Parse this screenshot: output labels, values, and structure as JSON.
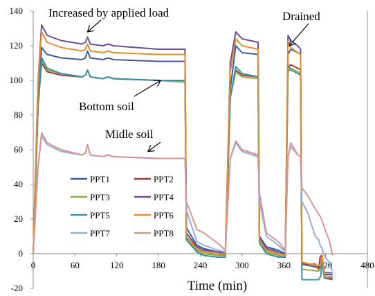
{
  "chart_data": {
    "type": "line",
    "xlabel": "Time (min)",
    "ylabel": "",
    "xlim": [
      0,
      480
    ],
    "ylim": [
      -20,
      140
    ],
    "xticks": [
      0,
      60,
      120,
      180,
      240,
      300,
      360,
      420,
      480
    ],
    "yticks": [
      -20,
      0,
      20,
      40,
      60,
      80,
      100,
      120,
      140
    ],
    "legend_position": "lower-left",
    "annotations": [
      {
        "text": "Increased by applied load",
        "target": [
          78,
          128
        ]
      },
      {
        "text": "Drained",
        "target": [
          368,
          120
        ]
      },
      {
        "text": "Bottom soil",
        "target": [
          183,
          100
        ]
      },
      {
        "text": "Midle soil",
        "target": [
          165,
          59
        ]
      }
    ],
    "series": [
      {
        "name": "PPT1",
        "color": "#3E5C9A",
        "points": [
          [
            0,
            0
          ],
          [
            7,
            85
          ],
          [
            12,
            119
          ],
          [
            20,
            115
          ],
          [
            40,
            113
          ],
          [
            70,
            112
          ],
          [
            75,
            113
          ],
          [
            78,
            117
          ],
          [
            82,
            113
          ],
          [
            100,
            112
          ],
          [
            108,
            113
          ],
          [
            115,
            112
          ],
          [
            180,
            111
          ],
          [
            218,
            111
          ],
          [
            220,
            15
          ],
          [
            235,
            5
          ],
          [
            245,
            3
          ],
          [
            265,
            1
          ],
          [
            276,
            1
          ],
          [
            283,
            95
          ],
          [
            291,
            120
          ],
          [
            300,
            116
          ],
          [
            323,
            115
          ],
          [
            325,
            10
          ],
          [
            335,
            4
          ],
          [
            352,
            2
          ],
          [
            362,
            0
          ],
          [
            366,
            115
          ],
          [
            370,
            118
          ],
          [
            380,
            116
          ],
          [
            384,
            115
          ],
          [
            386,
            -6
          ],
          [
            410,
            -8
          ],
          [
            413,
            -7
          ],
          [
            415,
            -2
          ],
          [
            418,
            -12
          ],
          [
            430,
            -12
          ]
        ]
      },
      {
        "name": "PPT2",
        "color": "#A93A38",
        "points": [
          [
            0,
            0
          ],
          [
            7,
            85
          ],
          [
            12,
            110
          ],
          [
            20,
            105
          ],
          [
            40,
            103
          ],
          [
            70,
            102
          ],
          [
            75,
            103
          ],
          [
            78,
            106
          ],
          [
            82,
            102
          ],
          [
            100,
            101
          ],
          [
            108,
            102
          ],
          [
            115,
            101
          ],
          [
            180,
            100
          ],
          [
            218,
            99
          ],
          [
            220,
            10
          ],
          [
            235,
            3
          ],
          [
            245,
            1
          ],
          [
            265,
            0
          ],
          [
            276,
            -1
          ],
          [
            283,
            90
          ],
          [
            291,
            106
          ],
          [
            300,
            103
          ],
          [
            323,
            102
          ],
          [
            325,
            8
          ],
          [
            335,
            2
          ],
          [
            352,
            0
          ],
          [
            362,
            -1
          ],
          [
            366,
            108
          ],
          [
            370,
            109
          ],
          [
            380,
            107
          ],
          [
            384,
            106
          ],
          [
            386,
            -6
          ],
          [
            405,
            -6
          ],
          [
            410,
            -9
          ],
          [
            412,
            -2
          ],
          [
            414,
            -1
          ],
          [
            418,
            -14
          ],
          [
            430,
            -15
          ]
        ]
      },
      {
        "name": "PPT3",
        "color": "#8BAF45",
        "points": [
          [
            0,
            0
          ],
          [
            7,
            85
          ],
          [
            12,
            112
          ],
          [
            20,
            106
          ],
          [
            40,
            104
          ],
          [
            70,
            102
          ],
          [
            75,
            103
          ],
          [
            78,
            106
          ],
          [
            82,
            102
          ],
          [
            100,
            101
          ],
          [
            108,
            102
          ],
          [
            115,
            101
          ],
          [
            180,
            100
          ],
          [
            218,
            99
          ],
          [
            220,
            9
          ],
          [
            235,
            2
          ],
          [
            245,
            0
          ],
          [
            265,
            -1
          ],
          [
            276,
            -1
          ],
          [
            283,
            90
          ],
          [
            291,
            105
          ],
          [
            300,
            102
          ],
          [
            323,
            101
          ],
          [
            325,
            7
          ],
          [
            335,
            1
          ],
          [
            352,
            -1
          ],
          [
            362,
            -2
          ],
          [
            366,
            105
          ],
          [
            370,
            107
          ],
          [
            380,
            105
          ],
          [
            384,
            104
          ],
          [
            386,
            -9
          ],
          [
            410,
            -10
          ],
          [
            413,
            -8
          ],
          [
            415,
            -3
          ],
          [
            418,
            -14
          ],
          [
            430,
            -14
          ]
        ]
      },
      {
        "name": "PPT4",
        "color": "#6A4F95",
        "points": [
          [
            0,
            0
          ],
          [
            7,
            100
          ],
          [
            12,
            132
          ],
          [
            20,
            126
          ],
          [
            40,
            123
          ],
          [
            70,
            121
          ],
          [
            75,
            122
          ],
          [
            78,
            125
          ],
          [
            82,
            121
          ],
          [
            100,
            120
          ],
          [
            108,
            121
          ],
          [
            115,
            120
          ],
          [
            180,
            118
          ],
          [
            218,
            118
          ],
          [
            220,
            12
          ],
          [
            235,
            4
          ],
          [
            245,
            2
          ],
          [
            265,
            1
          ],
          [
            276,
            0
          ],
          [
            283,
            110
          ],
          [
            291,
            128
          ],
          [
            300,
            124
          ],
          [
            323,
            122
          ],
          [
            325,
            9
          ],
          [
            335,
            3
          ],
          [
            352,
            1
          ],
          [
            362,
            0
          ],
          [
            366,
            126
          ],
          [
            370,
            123
          ],
          [
            380,
            120
          ],
          [
            384,
            118
          ],
          [
            386,
            -5
          ],
          [
            410,
            -7
          ],
          [
            413,
            -5
          ],
          [
            415,
            -1
          ],
          [
            418,
            -11
          ],
          [
            430,
            -11
          ]
        ]
      },
      {
        "name": "PPT5",
        "color": "#3A8FA8",
        "points": [
          [
            0,
            0
          ],
          [
            7,
            85
          ],
          [
            12,
            113
          ],
          [
            20,
            107
          ],
          [
            40,
            104
          ],
          [
            70,
            102
          ],
          [
            75,
            103
          ],
          [
            78,
            106
          ],
          [
            82,
            102
          ],
          [
            100,
            101
          ],
          [
            108,
            102
          ],
          [
            115,
            101
          ],
          [
            180,
            100
          ],
          [
            218,
            100
          ],
          [
            220,
            8
          ],
          [
            235,
            1
          ],
          [
            245,
            -1
          ],
          [
            265,
            -2
          ],
          [
            276,
            -2
          ],
          [
            283,
            90
          ],
          [
            291,
            108
          ],
          [
            300,
            104
          ],
          [
            323,
            102
          ],
          [
            325,
            6
          ],
          [
            335,
            0
          ],
          [
            352,
            -2
          ],
          [
            362,
            -2
          ],
          [
            366,
            109
          ],
          [
            370,
            106
          ],
          [
            380,
            104
          ],
          [
            384,
            103
          ],
          [
            386,
            -15
          ],
          [
            410,
            -15
          ],
          [
            413,
            -13
          ],
          [
            415,
            -4
          ],
          [
            418,
            -14
          ],
          [
            430,
            -14
          ]
        ]
      },
      {
        "name": "PPT6",
        "color": "#E28E2E",
        "points": [
          [
            0,
            0
          ],
          [
            7,
            100
          ],
          [
            12,
            128
          ],
          [
            20,
            122
          ],
          [
            40,
            119
          ],
          [
            70,
            117
          ],
          [
            75,
            118
          ],
          [
            78,
            121
          ],
          [
            82,
            117
          ],
          [
            100,
            116
          ],
          [
            108,
            117
          ],
          [
            115,
            116
          ],
          [
            180,
            115
          ],
          [
            218,
            115
          ],
          [
            220,
            10
          ],
          [
            235,
            3
          ],
          [
            245,
            1
          ],
          [
            265,
            0
          ],
          [
            276,
            0
          ],
          [
            283,
            105
          ],
          [
            291,
            124
          ],
          [
            300,
            120
          ],
          [
            323,
            118
          ],
          [
            325,
            8
          ],
          [
            335,
            2
          ],
          [
            352,
            0
          ],
          [
            362,
            -1
          ],
          [
            366,
            122
          ],
          [
            370,
            119
          ],
          [
            380,
            116
          ],
          [
            384,
            115
          ],
          [
            386,
            -5
          ],
          [
            410,
            -7
          ],
          [
            413,
            -6
          ],
          [
            415,
            -1
          ],
          [
            418,
            -13
          ],
          [
            430,
            -13
          ]
        ]
      },
      {
        "name": "PPT7",
        "color": "#93AED6",
        "points": [
          [
            0,
            0
          ],
          [
            7,
            50
          ],
          [
            12,
            68
          ],
          [
            20,
            63
          ],
          [
            40,
            59
          ],
          [
            70,
            57
          ],
          [
            75,
            58
          ],
          [
            78,
            63
          ],
          [
            82,
            57
          ],
          [
            100,
            56
          ],
          [
            108,
            57
          ],
          [
            115,
            56
          ],
          [
            180,
            55
          ],
          [
            218,
            55
          ],
          [
            220,
            25
          ],
          [
            235,
            7
          ],
          [
            245,
            5
          ],
          [
            265,
            2
          ],
          [
            276,
            1
          ],
          [
            283,
            55
          ],
          [
            291,
            64
          ],
          [
            300,
            59
          ],
          [
            323,
            56
          ],
          [
            325,
            30
          ],
          [
            335,
            10
          ],
          [
            352,
            5
          ],
          [
            362,
            1
          ],
          [
            366,
            56
          ],
          [
            370,
            62
          ],
          [
            380,
            57
          ],
          [
            384,
            56
          ],
          [
            386,
            30
          ],
          [
            395,
            23
          ],
          [
            405,
            10
          ],
          [
            410,
            8
          ],
          [
            412,
            5
          ],
          [
            415,
            3
          ],
          [
            418,
            -1
          ],
          [
            425,
            -5
          ],
          [
            430,
            -10
          ]
        ]
      },
      {
        "name": "PPT8",
        "color": "#D99594",
        "points": [
          [
            0,
            0
          ],
          [
            7,
            50
          ],
          [
            12,
            70
          ],
          [
            20,
            64
          ],
          [
            40,
            60
          ],
          [
            70,
            57
          ],
          [
            75,
            58
          ],
          [
            78,
            63
          ],
          [
            82,
            57
          ],
          [
            100,
            56
          ],
          [
            108,
            57
          ],
          [
            115,
            56
          ],
          [
            180,
            55
          ],
          [
            218,
            55
          ],
          [
            220,
            30
          ],
          [
            235,
            14
          ],
          [
            245,
            12
          ],
          [
            265,
            6
          ],
          [
            276,
            2
          ],
          [
            283,
            55
          ],
          [
            291,
            65
          ],
          [
            300,
            60
          ],
          [
            323,
            57
          ],
          [
            325,
            35
          ],
          [
            335,
            12
          ],
          [
            352,
            7
          ],
          [
            362,
            2
          ],
          [
            366,
            56
          ],
          [
            370,
            64
          ],
          [
            380,
            57
          ],
          [
            384,
            56
          ],
          [
            386,
            38
          ],
          [
            395,
            33
          ],
          [
            405,
            26
          ],
          [
            413,
            21
          ],
          [
            415,
            19
          ],
          [
            420,
            13
          ],
          [
            425,
            8
          ],
          [
            430,
            -1
          ]
        ]
      }
    ]
  }
}
